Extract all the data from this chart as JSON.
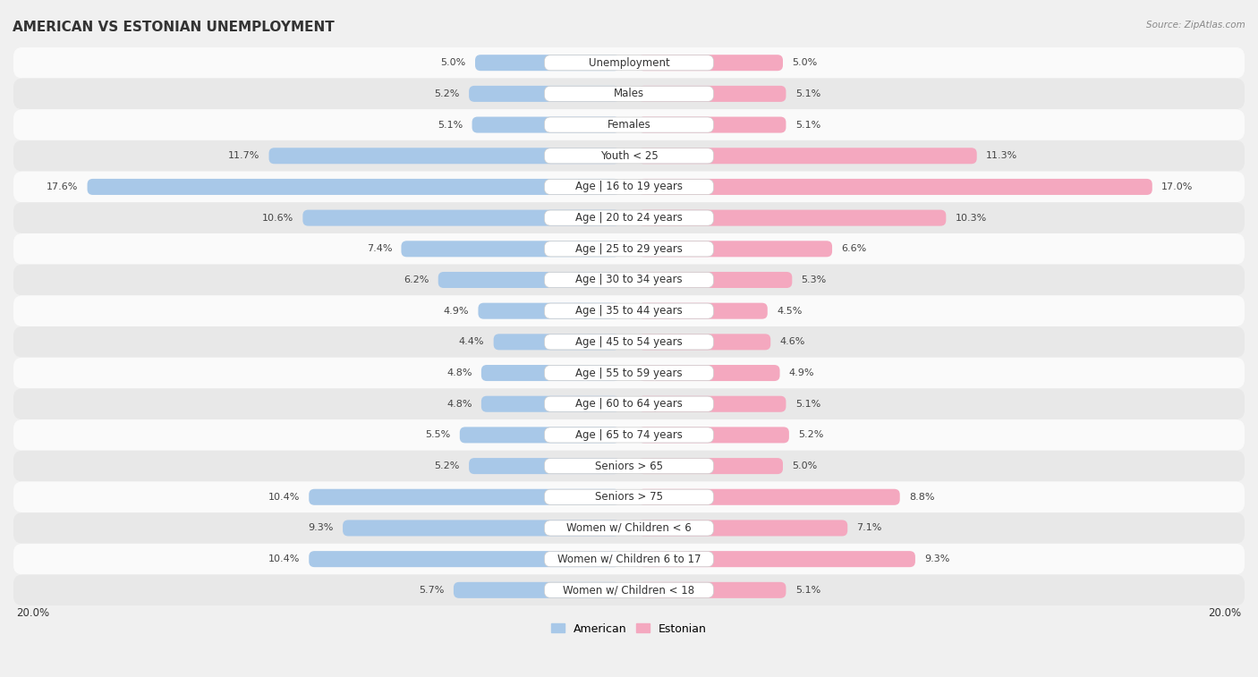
{
  "title": "AMERICAN VS ESTONIAN UNEMPLOYMENT",
  "source": "Source: ZipAtlas.com",
  "categories": [
    "Unemployment",
    "Males",
    "Females",
    "Youth < 25",
    "Age | 16 to 19 years",
    "Age | 20 to 24 years",
    "Age | 25 to 29 years",
    "Age | 30 to 34 years",
    "Age | 35 to 44 years",
    "Age | 45 to 54 years",
    "Age | 55 to 59 years",
    "Age | 60 to 64 years",
    "Age | 65 to 74 years",
    "Seniors > 65",
    "Seniors > 75",
    "Women w/ Children < 6",
    "Women w/ Children 6 to 17",
    "Women w/ Children < 18"
  ],
  "american_values": [
    5.0,
    5.2,
    5.1,
    11.7,
    17.6,
    10.6,
    7.4,
    6.2,
    4.9,
    4.4,
    4.8,
    4.8,
    5.5,
    5.2,
    10.4,
    9.3,
    10.4,
    5.7
  ],
  "estonian_values": [
    5.0,
    5.1,
    5.1,
    11.3,
    17.0,
    10.3,
    6.6,
    5.3,
    4.5,
    4.6,
    4.9,
    5.1,
    5.2,
    5.0,
    8.8,
    7.1,
    9.3,
    5.1
  ],
  "american_color": "#a8c8e8",
  "estonian_color": "#f4a8bf",
  "max_value": 20.0,
  "background_color": "#f0f0f0",
  "row_bg_light": "#fafafa",
  "row_bg_dark": "#e8e8e8",
  "title_fontsize": 11,
  "label_fontsize": 8.5,
  "value_fontsize": 8
}
